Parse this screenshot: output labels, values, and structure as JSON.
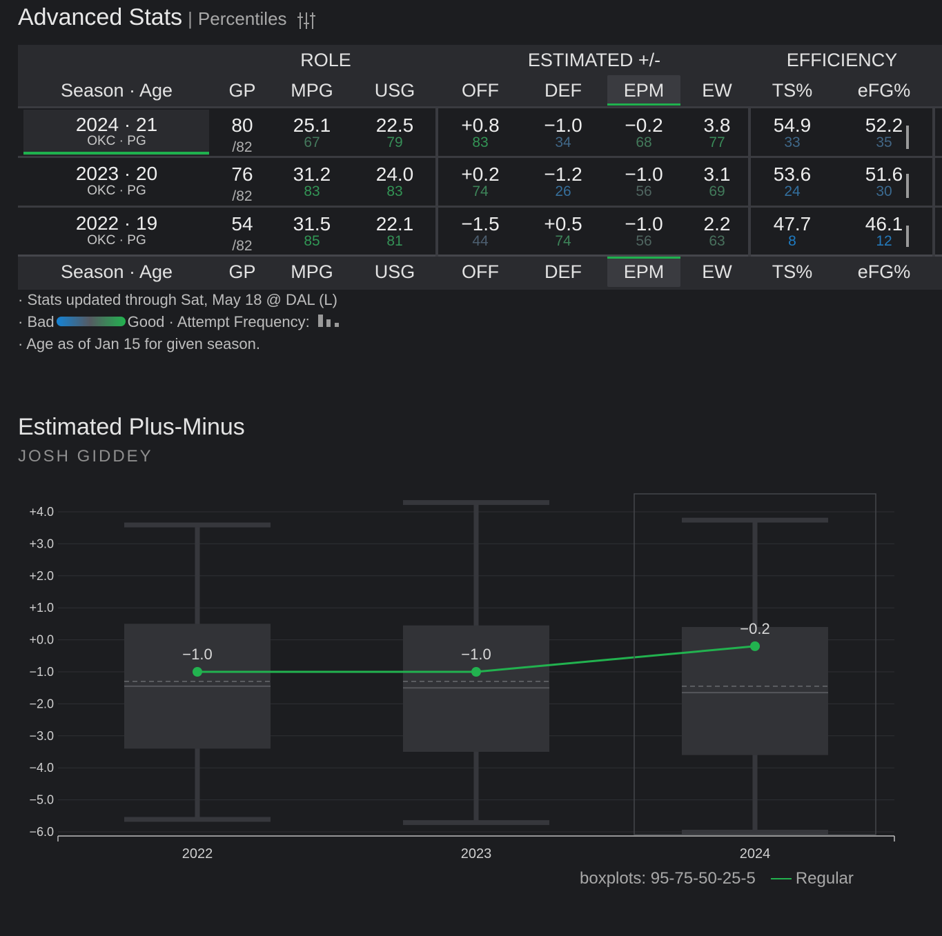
{
  "header": {
    "title": "Advanced Stats",
    "separator": "|",
    "subtitle": "Percentiles",
    "icon": "sliders-icon"
  },
  "table": {
    "groups": {
      "role": "ROLE",
      "estimated": "ESTIMATED +/-",
      "efficiency": "EFFICIENCY"
    },
    "columns": [
      "Season · Age",
      "GP",
      "MPG",
      "USG",
      "OFF",
      "DEF",
      "EPM",
      "EW",
      "TS%",
      "eFG%"
    ],
    "highlighted_column": "EPM",
    "rows": [
      {
        "season": "2024 · 21",
        "team": "OKC · PG",
        "gp": "80",
        "gp_of": "/82",
        "mpg": {
          "v": "25.1",
          "p": "67"
        },
        "usg": {
          "v": "22.5",
          "p": "79"
        },
        "off": {
          "v": "+0.8",
          "p": "83"
        },
        "def": {
          "v": "−1.0",
          "p": "34"
        },
        "epm": {
          "v": "−0.2",
          "p": "68"
        },
        "ew": {
          "v": "3.8",
          "p": "77"
        },
        "ts": {
          "v": "54.9",
          "p": "33"
        },
        "efg": {
          "v": "52.2",
          "p": "35"
        }
      },
      {
        "season": "2023 · 20",
        "team": "OKC · PG",
        "gp": "76",
        "gp_of": "/82",
        "mpg": {
          "v": "31.2",
          "p": "83"
        },
        "usg": {
          "v": "24.0",
          "p": "83"
        },
        "off": {
          "v": "+0.2",
          "p": "74"
        },
        "def": {
          "v": "−1.2",
          "p": "26"
        },
        "epm": {
          "v": "−1.0",
          "p": "56"
        },
        "ew": {
          "v": "3.1",
          "p": "69"
        },
        "ts": {
          "v": "53.6",
          "p": "24"
        },
        "efg": {
          "v": "51.6",
          "p": "30"
        }
      },
      {
        "season": "2022 · 19",
        "team": "OKC · PG",
        "gp": "54",
        "gp_of": "/82",
        "mpg": {
          "v": "31.5",
          "p": "85"
        },
        "usg": {
          "v": "22.1",
          "p": "81"
        },
        "off": {
          "v": "−1.5",
          "p": "44"
        },
        "def": {
          "v": "+0.5",
          "p": "74"
        },
        "epm": {
          "v": "−1.0",
          "p": "56"
        },
        "ew": {
          "v": "2.2",
          "p": "63"
        },
        "ts": {
          "v": "47.7",
          "p": "8"
        },
        "efg": {
          "v": "46.1",
          "p": "12"
        }
      }
    ]
  },
  "notes": {
    "updated": "· Stats updated through Sat, May 18 @ DAL (L)",
    "bad_prefix": "· Bad",
    "good_suffix": "Good · Attempt Frequency:",
    "age": "· Age as of Jan 15 for given season."
  },
  "colors": {
    "good": "#22b24f",
    "bad": "#1483d6",
    "accent": "#1fb14e",
    "neutral_pct": "#555a62"
  },
  "chart": {
    "title": "Estimated Plus-Minus",
    "player": "JOSH GIDDEY",
    "legend_boxplots": "boxplots: 95-75-50-25-5",
    "legend_series": "Regular"
  },
  "chart_data": {
    "type": "line",
    "title": "Estimated Plus-Minus",
    "x": [
      "2022",
      "2023",
      "2024"
    ],
    "ylim": [
      -6.0,
      4.0
    ],
    "yticks": [
      "+4.0",
      "+3.0",
      "+2.0",
      "+1.0",
      "+0.0",
      "−1.0",
      "−2.0",
      "−3.0",
      "−4.0",
      "−5.0",
      "−6.0"
    ],
    "ytick_values": [
      4,
      3,
      2,
      1,
      0,
      -1,
      -2,
      -3,
      -4,
      -5,
      -6
    ],
    "grid": true,
    "series": [
      {
        "name": "Regular",
        "values": [
          -1.0,
          -1.0,
          -0.2
        ],
        "labels": [
          "−1.0",
          "−1.0",
          "−0.2"
        ]
      }
    ],
    "boxplots": [
      {
        "year": "2022",
        "p95": 3.6,
        "p75": 0.5,
        "median": -1.45,
        "mean": -1.3,
        "p25": -3.4,
        "p5": -5.6
      },
      {
        "year": "2023",
        "p95": 4.3,
        "p75": 0.45,
        "median": -1.5,
        "mean": -1.3,
        "p25": -3.5,
        "p5": -5.7
      },
      {
        "year": "2024",
        "p95": 3.75,
        "p75": 0.4,
        "median": -1.65,
        "mean": -1.45,
        "p25": -3.6,
        "p5": -6.0
      }
    ],
    "highlighted_x": "2024"
  }
}
